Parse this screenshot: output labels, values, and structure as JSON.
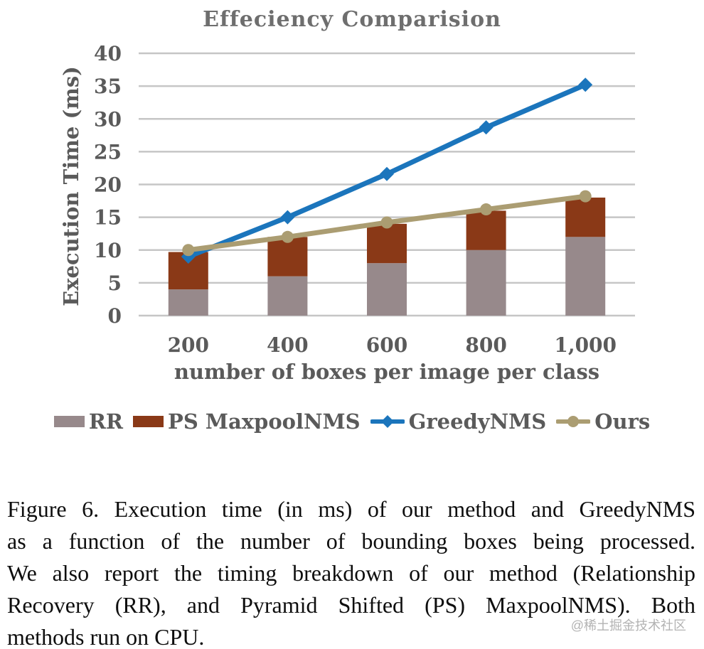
{
  "chart_data": {
    "type": "bar",
    "subtype": "stacked-bars-with-lines",
    "title": "Effeciency Comparision",
    "xlabel": "number of boxes per image per class",
    "ylabel": "Execution Time (ms)",
    "ylim": [
      0,
      40
    ],
    "ytick_step": 5,
    "grid": true,
    "legend_position": "bottom",
    "categories": [
      "200",
      "400",
      "600",
      "800",
      "1,000"
    ],
    "bar_series": [
      {
        "name": "RR",
        "type": "bar-stack",
        "color": "#97898b",
        "values": [
          4,
          6,
          8,
          10,
          12
        ]
      },
      {
        "name": "PS MaxpoolNMS",
        "type": "bar-stack",
        "color": "#8a3917",
        "values": [
          5.7,
          6,
          6,
          6,
          6
        ]
      }
    ],
    "line_series": [
      {
        "name": "GreedyNMS",
        "type": "line",
        "color": "#1b75bc",
        "marker": "diamond",
        "values": [
          9,
          15,
          21.6,
          28.7,
          35.2
        ]
      },
      {
        "name": "Ours",
        "type": "line",
        "color": "#ab9d72",
        "marker": "circle",
        "values": [
          10,
          12,
          14.2,
          16.2,
          18.2
        ]
      }
    ]
  },
  "caption": {
    "lines": [
      "Figure 6. Execution time (in ms) of our method and GreedyNMS",
      "as a function of the number of bounding boxes being processed.",
      "We also report the timing breakdown of our method (Relationship",
      "Recovery (RR), and Pyramid Shifted (PS) MaxpoolNMS). Both",
      "methods run on CPU."
    ]
  },
  "watermark": "@稀土掘金技术社区"
}
